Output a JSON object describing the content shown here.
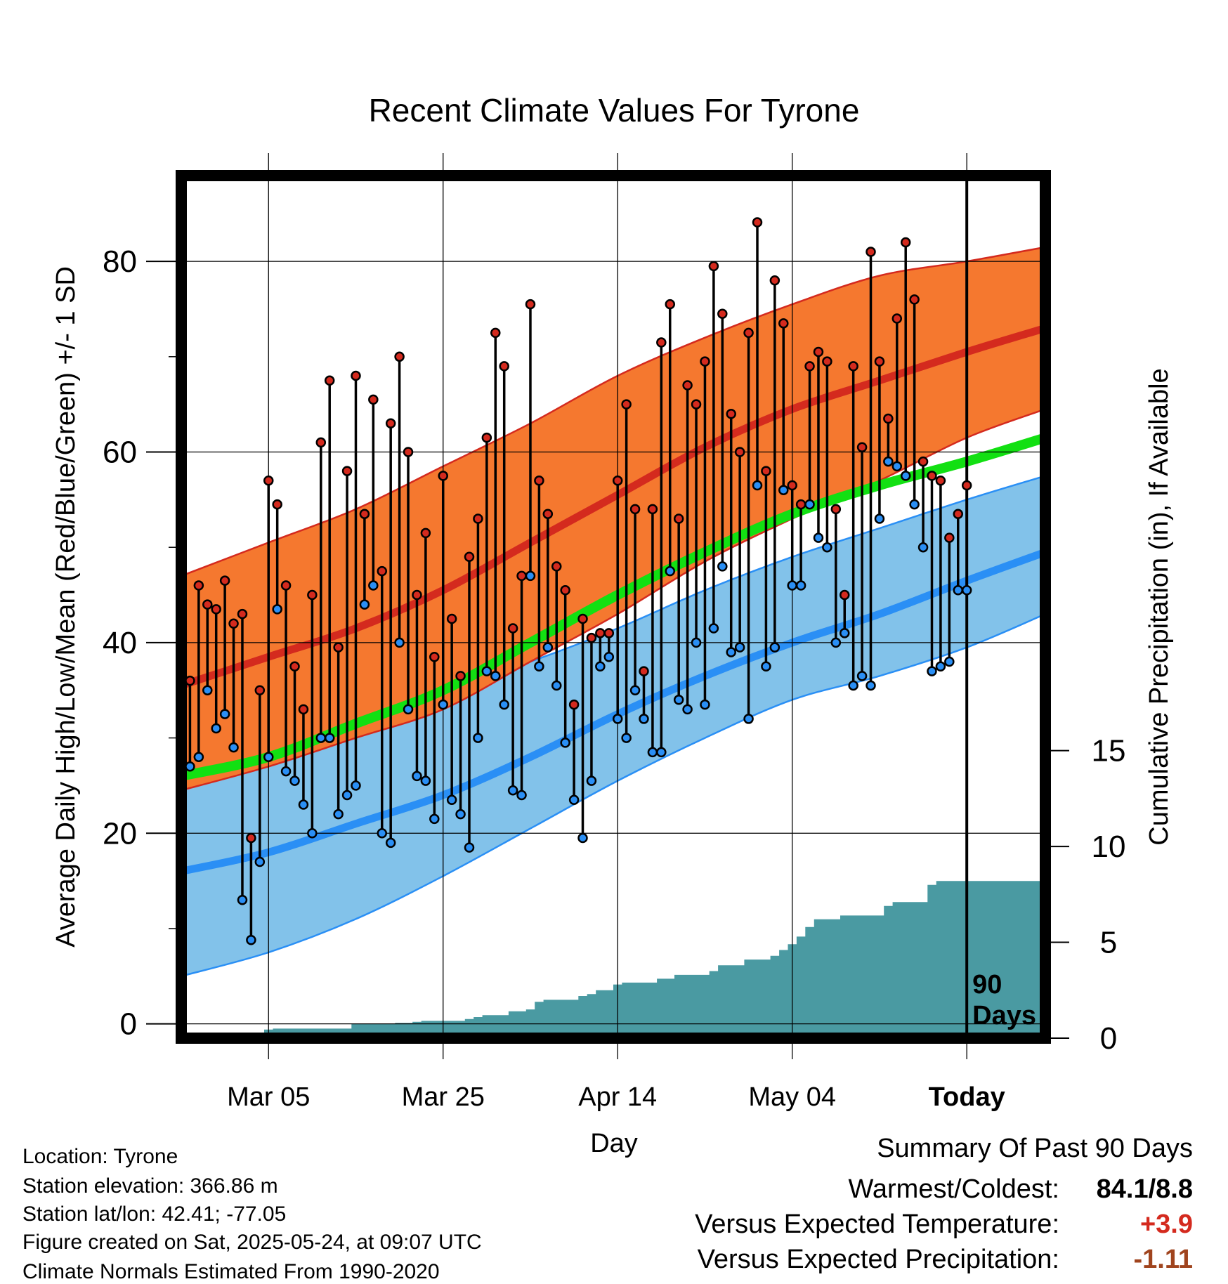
{
  "title": "Recent Climate Values For Tyrone",
  "info": {
    "location": "Location: Tyrone",
    "elevation": "Station elevation: 366.86 m",
    "latlon": "Station lat/lon: 42.41; -77.05",
    "created": "Figure created on Sat, 2025-05-24, at 09:07 UTC",
    "normals": "Climate Normals Estimated From 1990-2020"
  },
  "summary": {
    "title": "Summary Of Past 90 Days",
    "warmest_coldest_label": "Warmest/Coldest:",
    "warmest_coldest_value": "84.1/8.8",
    "temp_label": "Versus Expected Temperature:",
    "temp_value": "+3.9",
    "precip_label": "Versus Expected Precipitation:",
    "precip_value": "-1.11"
  },
  "colors": {
    "high_band": "#f5782f",
    "high_mean": "#d42a1e",
    "low_band": "#82c2ea",
    "low_mean": "#2a8ff5",
    "mean_line": "#12e012",
    "precip": "#4a9aa2",
    "high_dot": "#d42a1e",
    "low_dot": "#2a8ff5",
    "temp_value": "#d42a1e",
    "precip_value": "#a0441e"
  },
  "chart_data": {
    "type": "line",
    "title": "Recent Climate Values For Tyrone",
    "xlabel": "Day",
    "ylabel": "Average Daily High/Low/Mean (Red/Blue/Green) +/- 1 SD",
    "y2label": "Cumulative Precipitation (in), If Available",
    "ylim": [
      -1.5,
      89
    ],
    "y2lim": [
      0,
      45
    ],
    "xlim": [
      "2025-02-23",
      "2025-06-02"
    ],
    "grid": true,
    "x_ticks": [
      {
        "date": "2025-03-05",
        "label": "Mar 05"
      },
      {
        "date": "2025-03-25",
        "label": "Mar 25"
      },
      {
        "date": "2025-04-14",
        "label": "Apr 14"
      },
      {
        "date": "2025-05-04",
        "label": "May 04"
      },
      {
        "date": "2025-05-24",
        "label": "Today"
      }
    ],
    "y_ticks": [
      0,
      20,
      40,
      60,
      80
    ],
    "y2_ticks": [
      0,
      5,
      10,
      15
    ],
    "today": "2025-05-24",
    "today_label": [
      "90",
      "Days"
    ],
    "normals": {
      "dates": [
        "2025-02-23",
        "2025-03-05",
        "2025-03-15",
        "2025-03-25",
        "2025-04-04",
        "2025-04-14",
        "2025-04-24",
        "2025-05-04",
        "2025-05-14",
        "2025-05-24",
        "2025-06-02"
      ],
      "high_mean": [
        35.5,
        38.5,
        41.5,
        45.5,
        50.5,
        55.5,
        60.5,
        64.5,
        67.5,
        70.5,
        73
      ],
      "high_plus_sd": [
        47,
        50.5,
        54,
        58.5,
        63,
        68,
        72,
        75.5,
        78.5,
        80,
        81.5
      ],
      "high_minus_sd": [
        24.5,
        27,
        30,
        33,
        38,
        43,
        48.5,
        53,
        57,
        61.5,
        64.5
      ],
      "mean": [
        26,
        28,
        31.5,
        35,
        40,
        45,
        49.5,
        53.5,
        56.5,
        59,
        61.5
      ],
      "low_mean": [
        16,
        18,
        21,
        24,
        28,
        32.5,
        36.5,
        40,
        43,
        46.5,
        49.5
      ],
      "low_plus_sd": [
        27,
        29.5,
        32.5,
        35,
        38,
        41.5,
        45.5,
        49,
        52,
        55,
        57.5
      ],
      "low_minus_sd": [
        5,
        7.5,
        11,
        15.5,
        20.5,
        25.5,
        30,
        34,
        36.5,
        39.5,
        43
      ]
    },
    "series": [
      {
        "name": "High",
        "values": [
          36,
          46,
          44,
          43.5,
          46.5,
          42,
          43,
          19.5,
          35,
          57,
          54.5,
          46,
          37.5,
          33,
          45,
          61,
          67.5,
          39.5,
          58,
          68,
          53.5,
          65.5,
          47.5,
          63,
          70,
          60,
          45,
          51.5,
          38.5,
          57.5,
          42.5,
          36.5,
          49,
          53,
          61.5,
          72.5,
          69,
          41.5,
          47,
          75.5,
          57,
          53.5,
          48,
          45.5,
          33.5,
          42.5,
          40.5,
          41,
          41,
          57,
          65,
          54,
          37,
          54,
          71.5,
          75.5,
          53,
          67,
          65,
          69.5,
          79.5,
          74.5,
          64,
          60,
          72.5,
          84.1,
          58,
          78,
          73.5,
          56.5,
          54.5,
          69,
          70.5,
          69.5,
          54,
          45,
          69,
          60.5,
          81,
          69.5,
          63.5,
          74,
          82,
          76,
          59,
          57.5,
          57,
          51,
          53.5,
          56.5
        ]
      },
      {
        "name": "Low",
        "values": [
          27,
          28,
          35,
          31,
          32.5,
          29,
          13,
          8.8,
          17,
          28,
          43.5,
          26.5,
          25.5,
          23,
          20,
          30,
          30,
          22,
          24,
          25,
          44,
          46,
          20,
          19,
          40,
          33,
          26,
          25.5,
          21.5,
          33.5,
          23.5,
          22,
          18.5,
          30,
          37,
          36.5,
          33.5,
          24.5,
          24,
          47,
          37.5,
          39.5,
          35.5,
          29.5,
          23.5,
          19.5,
          25.5,
          37.5,
          38.5,
          32,
          30,
          35,
          32,
          28.5,
          28.5,
          47.5,
          34,
          33,
          40,
          33.5,
          41.5,
          48,
          39,
          39.5,
          32,
          56.5,
          37.5,
          39.5,
          56,
          46,
          46,
          54.5,
          51,
          50,
          40,
          41,
          35.5,
          36.5,
          35.5,
          53,
          59,
          58.5,
          57.5,
          54.5,
          50,
          37,
          37.5,
          38,
          45.5,
          45.5
        ]
      },
      {
        "name": "Cumulative Precipitation",
        "values": [
          0,
          0,
          0,
          0,
          0,
          0,
          0,
          0,
          0.05,
          0.1,
          0.45,
          0.5,
          0.5,
          0.5,
          0.5,
          0.5,
          0.5,
          0.5,
          0.5,
          0.5,
          0.75,
          0.75,
          0.75,
          0.75,
          0.75,
          0.8,
          0.8,
          0.85,
          0.9,
          0.9,
          0.9,
          0.9,
          0.9,
          1.0,
          1.1,
          1.2,
          1.2,
          1.2,
          1.4,
          1.4,
          1.5,
          1.9,
          2.0,
          2.0,
          2.0,
          2.0,
          2.2,
          2.3,
          2.5,
          2.5,
          2.8,
          2.9,
          2.9,
          2.9,
          2.9,
          3.1,
          3.1,
          3.3,
          3.3,
          3.3,
          3.3,
          3.5,
          3.8,
          3.8,
          3.8,
          4.1,
          4.1,
          4.1,
          4.3,
          4.6,
          4.9,
          5.3,
          5.8,
          6.2,
          6.2,
          6.2,
          6.4,
          6.4,
          6.4,
          6.4,
          6.4,
          6.9,
          7.1,
          7.1,
          7.1,
          7.1,
          8.0,
          8.2,
          8.2,
          8.2,
          8.2
        ]
      }
    ]
  }
}
